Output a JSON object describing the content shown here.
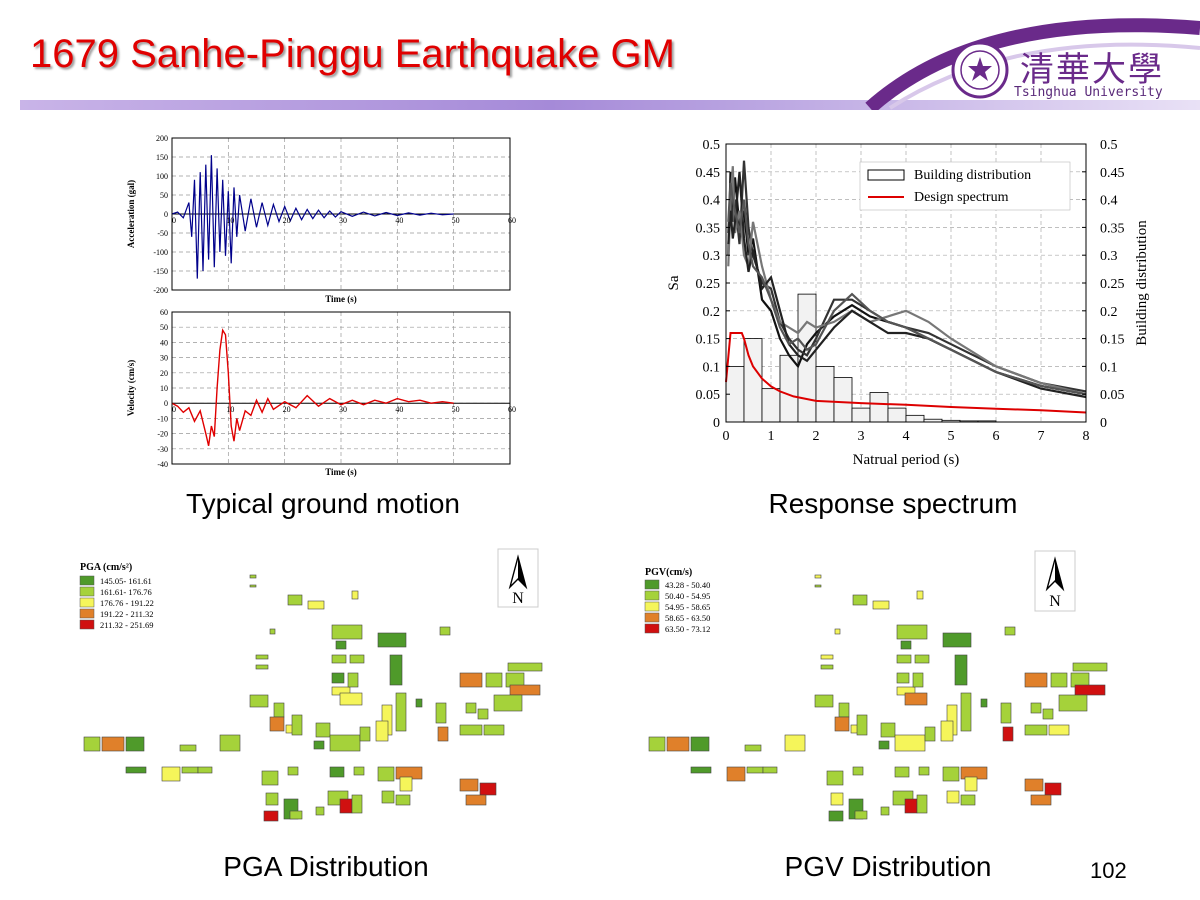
{
  "slide": {
    "title": "1679 Sanhe-Pinggu Earthquake GM",
    "page_number": "102",
    "logo": {
      "chinese": "清華大學",
      "english": "Tsinghua University"
    },
    "captions": {
      "ground_motion": "Typical ground motion",
      "response_spectrum": "Response spectrum",
      "pga": "PGA Distribution",
      "pgv": "PGV Distribution"
    },
    "colors": {
      "title": "#e00000",
      "accel_series": "#00008b",
      "vel_series": "#e00000",
      "design_spectrum": "#dd0000"
    }
  },
  "chart_data": [
    {
      "id": "acceleration",
      "type": "line",
      "xlabel": "Time (s)",
      "ylabel": "Acceleration (gal)",
      "xlim": [
        0,
        60
      ],
      "ylim": [
        -200,
        200
      ],
      "xticks": [
        0,
        10,
        20,
        30,
        40,
        50,
        60
      ],
      "yticks": [
        -200,
        -150,
        -100,
        -50,
        0,
        50,
        100,
        150,
        200
      ],
      "grid": true,
      "series": [
        {
          "color": "#00008b",
          "x": [
            0,
            1,
            2,
            3,
            3.5,
            4,
            4.5,
            5,
            5.5,
            6,
            6.5,
            7,
            7.5,
            8,
            8.5,
            9,
            9.5,
            10,
            10.5,
            11,
            11.5,
            12,
            13,
            14,
            15,
            16,
            17,
            18,
            19,
            20,
            21,
            22,
            23,
            24,
            25,
            26,
            27,
            28,
            29,
            30,
            32,
            34,
            36,
            38,
            40,
            42,
            44,
            46,
            48,
            50
          ],
          "values": [
            0,
            5,
            -10,
            30,
            -60,
            90,
            -170,
            110,
            -150,
            130,
            -120,
            155,
            -140,
            120,
            -100,
            90,
            -110,
            60,
            -130,
            70,
            -60,
            50,
            -45,
            40,
            -35,
            30,
            -30,
            25,
            -20,
            20,
            -18,
            15,
            -15,
            12,
            -12,
            10,
            -10,
            8,
            -8,
            6,
            -6,
            5,
            -5,
            4,
            -4,
            3,
            -3,
            2,
            -2,
            0
          ]
        }
      ]
    },
    {
      "id": "velocity",
      "type": "line",
      "xlabel": "Time (s)",
      "ylabel": "Velocity (cm/s)",
      "xlim": [
        0,
        60
      ],
      "ylim": [
        -40,
        60
      ],
      "xticks": [
        0,
        10,
        20,
        30,
        40,
        50,
        60
      ],
      "yticks": [
        -40,
        -30,
        -20,
        -10,
        0,
        10,
        20,
        30,
        40,
        50,
        60
      ],
      "grid": true,
      "series": [
        {
          "color": "#e00000",
          "x": [
            0,
            1,
            2,
            3,
            4,
            5,
            6,
            6.5,
            7,
            7.5,
            8,
            8.5,
            9,
            9.5,
            10,
            10.5,
            11,
            11.5,
            12,
            13,
            14,
            15,
            16,
            17,
            18,
            20,
            22,
            24,
            26,
            28,
            30,
            32,
            34,
            36,
            38,
            40,
            42,
            44,
            46,
            48,
            50
          ],
          "values": [
            0,
            -2,
            -6,
            -3,
            -12,
            -5,
            -20,
            -28,
            -15,
            -22,
            10,
            35,
            48,
            45,
            20,
            -15,
            -25,
            -10,
            -18,
            -5,
            -8,
            2,
            -6,
            3,
            -4,
            1,
            -3,
            5,
            -2,
            3,
            -1,
            2,
            -1,
            2,
            0,
            3,
            1,
            2,
            0,
            1,
            0
          ]
        }
      ]
    },
    {
      "id": "response-spectrum",
      "type": "bar",
      "xlabel": "Natrual period (s)",
      "ylabel": "Sa",
      "ylabel_right": "Building distribution",
      "xlim": [
        0,
        8
      ],
      "ylim": [
        0,
        0.5
      ],
      "xticks": [
        0,
        1,
        2,
        3,
        4,
        5,
        6,
        7,
        8
      ],
      "yticks": [
        0,
        0.05,
        0.1,
        0.15,
        0.2,
        0.25,
        0.3,
        0.35,
        0.4,
        0.45,
        0.5
      ],
      "legend": {
        "placement": "top-right",
        "entries": [
          "Building distribution",
          "Design spectrum"
        ]
      },
      "histogram": {
        "name": "Building distribution",
        "bin_edges": [
          0,
          0.4,
          0.8,
          1.2,
          1.6,
          2.0,
          2.4,
          2.8,
          3.2,
          3.6,
          4.0,
          4.4,
          4.8,
          5.2,
          5.6,
          6.0
        ],
        "values": [
          0.1,
          0.15,
          0.06,
          0.12,
          0.23,
          0.1,
          0.08,
          0.025,
          0.053,
          0.025,
          0.012,
          0.005,
          0.003,
          0.002,
          0.002
        ]
      },
      "design_spectrum": {
        "name": "Design spectrum",
        "x": [
          0,
          0.1,
          0.2,
          0.3,
          0.35,
          0.4,
          0.5,
          0.6,
          0.8,
          1.0,
          1.2,
          1.5,
          2.0,
          2.5,
          3,
          4,
          5,
          6,
          7,
          8
        ],
        "values": [
          0.072,
          0.16,
          0.16,
          0.16,
          0.16,
          0.15,
          0.12,
          0.1,
          0.078,
          0.064,
          0.055,
          0.046,
          0.038,
          0.036,
          0.034,
          0.031,
          0.027,
          0.024,
          0.021,
          0.017
        ]
      },
      "spectra": [
        {
          "x": [
            0.05,
            0.1,
            0.15,
            0.2,
            0.3,
            0.4,
            0.5,
            0.6,
            0.8,
            1.0,
            1.2,
            1.4,
            1.6,
            1.8,
            2.0,
            2.4,
            2.8,
            3.2,
            3.6,
            4.0,
            4.5,
            5,
            6,
            7,
            8
          ],
          "values": [
            0.3,
            0.45,
            0.38,
            0.44,
            0.35,
            0.38,
            0.3,
            0.33,
            0.22,
            0.2,
            0.15,
            0.12,
            0.1,
            0.14,
            0.16,
            0.19,
            0.21,
            0.19,
            0.18,
            0.17,
            0.15,
            0.13,
            0.09,
            0.065,
            0.05
          ]
        },
        {
          "x": [
            0.05,
            0.1,
            0.15,
            0.2,
            0.3,
            0.4,
            0.5,
            0.6,
            0.8,
            1.0,
            1.2,
            1.4,
            1.6,
            1.8,
            2.0,
            2.4,
            2.8,
            3.2,
            3.6,
            4.0,
            4.5,
            5,
            6,
            7,
            8
          ],
          "values": [
            0.34,
            0.42,
            0.36,
            0.4,
            0.32,
            0.47,
            0.35,
            0.3,
            0.25,
            0.24,
            0.18,
            0.15,
            0.13,
            0.12,
            0.15,
            0.22,
            0.22,
            0.2,
            0.18,
            0.17,
            0.16,
            0.14,
            0.1,
            0.07,
            0.055
          ]
        },
        {
          "x": [
            0.05,
            0.1,
            0.15,
            0.2,
            0.3,
            0.4,
            0.5,
            0.6,
            0.8,
            1.0,
            1.2,
            1.4,
            1.6,
            1.8,
            2.0,
            2.4,
            2.8,
            3.2,
            3.6,
            4.0,
            4.5,
            5,
            6,
            7,
            8
          ],
          "values": [
            0.28,
            0.4,
            0.46,
            0.34,
            0.38,
            0.3,
            0.28,
            0.36,
            0.28,
            0.22,
            0.18,
            0.17,
            0.16,
            0.18,
            0.17,
            0.18,
            0.2,
            0.18,
            0.19,
            0.2,
            0.18,
            0.15,
            0.1,
            0.07,
            0.05
          ]
        },
        {
          "x": [
            0.05,
            0.1,
            0.15,
            0.2,
            0.3,
            0.4,
            0.5,
            0.6,
            0.8,
            1.0,
            1.2,
            1.4,
            1.6,
            1.8,
            2.0,
            2.4,
            2.8,
            3.2,
            3.6,
            4.0,
            4.5,
            5,
            6,
            7,
            8
          ],
          "values": [
            0.32,
            0.38,
            0.33,
            0.36,
            0.45,
            0.33,
            0.27,
            0.31,
            0.24,
            0.26,
            0.2,
            0.14,
            0.12,
            0.11,
            0.13,
            0.17,
            0.2,
            0.18,
            0.16,
            0.16,
            0.15,
            0.13,
            0.09,
            0.06,
            0.045
          ]
        },
        {
          "x": [
            0.05,
            0.1,
            0.15,
            0.2,
            0.3,
            0.4,
            0.5,
            0.6,
            0.8,
            1.0,
            1.2,
            1.4,
            1.6,
            1.8,
            2.0,
            2.4,
            2.8,
            3.2,
            3.6,
            4.0,
            4.5,
            5,
            6,
            7,
            8
          ],
          "values": [
            0.36,
            0.43,
            0.4,
            0.38,
            0.34,
            0.4,
            0.32,
            0.28,
            0.26,
            0.22,
            0.17,
            0.14,
            0.15,
            0.13,
            0.14,
            0.2,
            0.23,
            0.2,
            0.18,
            0.17,
            0.15,
            0.13,
            0.09,
            0.065,
            0.05
          ]
        }
      ]
    },
    {
      "id": "pga-map",
      "type": "heatmap",
      "legend_title": "PGA (cm/s²)",
      "legend": [
        {
          "label": "145.05- 161.61",
          "color": "#4f9a2a"
        },
        {
          "label": "161.61- 176.76",
          "color": "#a5d23a"
        },
        {
          "label": "176.76 - 191.22",
          "color": "#f5f55a"
        },
        {
          "label": "191.22 - 211.32",
          "color": "#e0802a"
        },
        {
          "label": "211.32 - 251.69",
          "color": "#d01010"
        }
      ],
      "north_label": "N"
    },
    {
      "id": "pgv-map",
      "type": "heatmap",
      "legend_title": "PGV(cm/s)",
      "legend": [
        {
          "label": "43.28 - 50.40",
          "color": "#4f9a2a"
        },
        {
          "label": "50.40 - 54.95",
          "color": "#a5d23a"
        },
        {
          "label": "54.95 - 58.65",
          "color": "#f5f55a"
        },
        {
          "label": "58.65 - 63.50",
          "color": "#e0802a"
        },
        {
          "label": "63.50 - 73.12",
          "color": "#d01010"
        }
      ],
      "north_label": "N"
    }
  ]
}
